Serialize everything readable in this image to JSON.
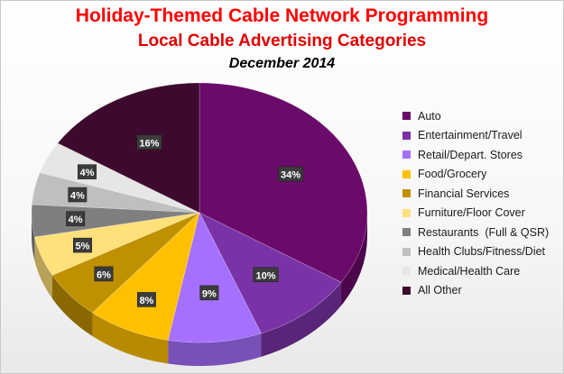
{
  "header": {
    "title": "Holiday-Themed Cable Network Programming",
    "subtitle": "Local Cable Advertising Categories",
    "date": "December 2014"
  },
  "chart_data": {
    "type": "pie",
    "title": "Holiday-Themed Cable Network Programming",
    "subtitle": "Local Cable Advertising Categories",
    "period": "December 2014",
    "three_d": true,
    "legend_position": "right",
    "slices": [
      {
        "label": "Auto",
        "value": 34,
        "display": "34%",
        "color": "#6a0a6a"
      },
      {
        "label": "Entertainment/Travel",
        "value": 10,
        "display": "10%",
        "color": "#7a33a6"
      },
      {
        "label": "Retail/Depart. Stores",
        "value": 9,
        "display": "9%",
        "color": "#a670ff"
      },
      {
        "label": "Food/Grocery",
        "value": 8,
        "display": "8%",
        "color": "#ffc000"
      },
      {
        "label": "Financial Services",
        "value": 6,
        "display": "6%",
        "color": "#bf9000"
      },
      {
        "label": "Furniture/Floor Cover",
        "value": 5,
        "display": "5%",
        "color": "#ffe07a"
      },
      {
        "label": "Restaurants  (Full & QSR)",
        "value": 4,
        "display": "4%",
        "color": "#7f7f7f"
      },
      {
        "label": "Health Clubs/Fitness/Diet",
        "value": 4,
        "display": "4%",
        "color": "#bfbfbf"
      },
      {
        "label": "Medical/Health Care",
        "value": 4,
        "display": "4%",
        "color": "#e6e6e6"
      },
      {
        "label": "All Other",
        "value": 16,
        "display": "16%",
        "color": "#3d0a2e"
      }
    ]
  }
}
